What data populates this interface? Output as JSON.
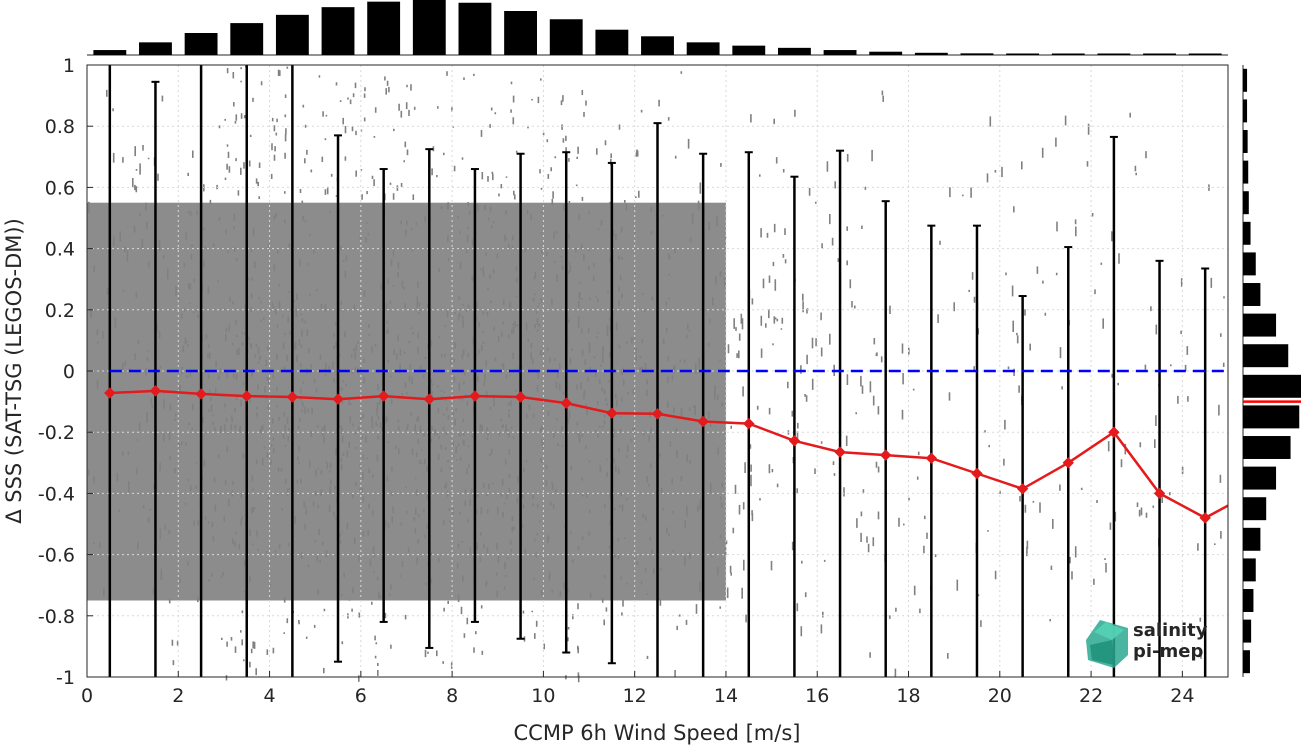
{
  "chart_data": {
    "type": "scatter",
    "title": "",
    "xlabel": "CCMP 6h Wind Speed [m/s]",
    "ylabel": "Δ SSS (SAT-TSG (LEGOS-DM))",
    "xlim": [
      0,
      25
    ],
    "ylim": [
      -1,
      1
    ],
    "xticks": [
      "0",
      "2",
      "4",
      "6",
      "8",
      "10",
      "12",
      "14",
      "16",
      "18",
      "20",
      "22",
      "24"
    ],
    "yticks": [
      "-1",
      "-0.8",
      "-0.6",
      "-0.4",
      "-0.2",
      "0",
      "0.2",
      "0.4",
      "0.6",
      "0.8",
      "1"
    ],
    "grid": true,
    "scatter_color": "#808080",
    "zero_line": {
      "y": 0,
      "color": "#0000ff",
      "style": "dashed"
    },
    "series": [
      {
        "color": "#e41a1c",
        "points": [
          {
            "x": 0.5,
            "y": -0.072,
            "low": -1.0,
            "high": 1.0
          },
          {
            "x": 1.5,
            "y": -0.065,
            "low": -1.0,
            "high": 0.945
          },
          {
            "x": 2.5,
            "y": -0.075,
            "low": -1.0,
            "high": 1.0
          },
          {
            "x": 3.5,
            "y": -0.082,
            "low": -1.0,
            "high": 1.0
          },
          {
            "x": 4.5,
            "y": -0.085,
            "low": -1.0,
            "high": 1.0
          },
          {
            "x": 5.5,
            "y": -0.092,
            "low": -0.95,
            "high": 0.77
          },
          {
            "x": 6.5,
            "y": -0.082,
            "low": -0.82,
            "high": 0.66
          },
          {
            "x": 7.5,
            "y": -0.092,
            "low": -0.905,
            "high": 0.725
          },
          {
            "x": 8.5,
            "y": -0.082,
            "low": -0.82,
            "high": 0.66
          },
          {
            "x": 9.5,
            "y": -0.085,
            "low": -0.875,
            "high": 0.71
          },
          {
            "x": 10.5,
            "y": -0.105,
            "low": -0.92,
            "high": 0.715
          },
          {
            "x": 11.5,
            "y": -0.138,
            "low": -0.955,
            "high": 0.68
          },
          {
            "x": 12.5,
            "y": -0.14,
            "low": -1.0,
            "high": 0.81
          },
          {
            "x": 13.5,
            "y": -0.165,
            "low": -1.0,
            "high": 0.71
          },
          {
            "x": 14.5,
            "y": -0.172,
            "low": -1.0,
            "high": 0.715
          },
          {
            "x": 15.5,
            "y": -0.228,
            "low": -1.0,
            "high": 0.635
          },
          {
            "x": 16.5,
            "y": -0.265,
            "low": -1.0,
            "high": 0.72
          },
          {
            "x": 17.5,
            "y": -0.275,
            "low": -1.0,
            "high": 0.555
          },
          {
            "x": 18.5,
            "y": -0.285,
            "low": -1.0,
            "high": 0.475
          },
          {
            "x": 19.5,
            "y": -0.335,
            "low": -1.0,
            "high": 0.475
          },
          {
            "x": 20.5,
            "y": -0.385,
            "low": -1.0,
            "high": 0.245
          },
          {
            "x": 21.5,
            "y": -0.3,
            "low": -1.0,
            "high": 0.405
          },
          {
            "x": 22.5,
            "y": -0.2,
            "low": -1.0,
            "high": 0.765
          },
          {
            "x": 23.5,
            "y": -0.4,
            "low": -1.0,
            "high": 0.36
          },
          {
            "x": 24.5,
            "y": -0.48,
            "low": -1.0,
            "high": 0.335
          }
        ],
        "line_end": {
          "x": 25,
          "y": -0.44
        }
      }
    ],
    "top_histogram": {
      "bins_x": [
        0.5,
        1.5,
        2.5,
        3.5,
        4.5,
        5.5,
        6.5,
        7.5,
        8.5,
        9.5,
        10.5,
        11.5,
        12.5,
        13.5,
        14.5,
        15.5,
        16.5,
        17.5,
        18.5,
        19.5,
        20.5,
        21.5,
        22.5,
        23.5,
        24.5
      ],
      "values": [
        0.09,
        0.23,
        0.4,
        0.58,
        0.73,
        0.87,
        0.97,
        1.0,
        0.95,
        0.8,
        0.65,
        0.46,
        0.34,
        0.23,
        0.17,
        0.13,
        0.09,
        0.06,
        0.04,
        0.03,
        0.025,
        0.02,
        0.015,
        0.01,
        0.01
      ]
    },
    "right_histogram": {
      "bins_y": [
        0.95,
        0.85,
        0.75,
        0.65,
        0.55,
        0.45,
        0.35,
        0.25,
        0.15,
        0.05,
        -0.05,
        -0.15,
        -0.25,
        -0.35,
        -0.45,
        -0.55,
        -0.65,
        -0.75,
        -0.85,
        -0.95
      ],
      "values": [
        0.07,
        0.07,
        0.08,
        0.09,
        0.1,
        0.13,
        0.22,
        0.3,
        0.57,
        0.78,
        1.0,
        0.97,
        0.82,
        0.57,
        0.4,
        0.3,
        0.22,
        0.18,
        0.14,
        0.12
      ],
      "median_y": -0.1,
      "median_color": "#ff0000"
    },
    "logo": {
      "line1": "salinity",
      "line2": "pi-mep",
      "color": "#24b39a"
    }
  }
}
